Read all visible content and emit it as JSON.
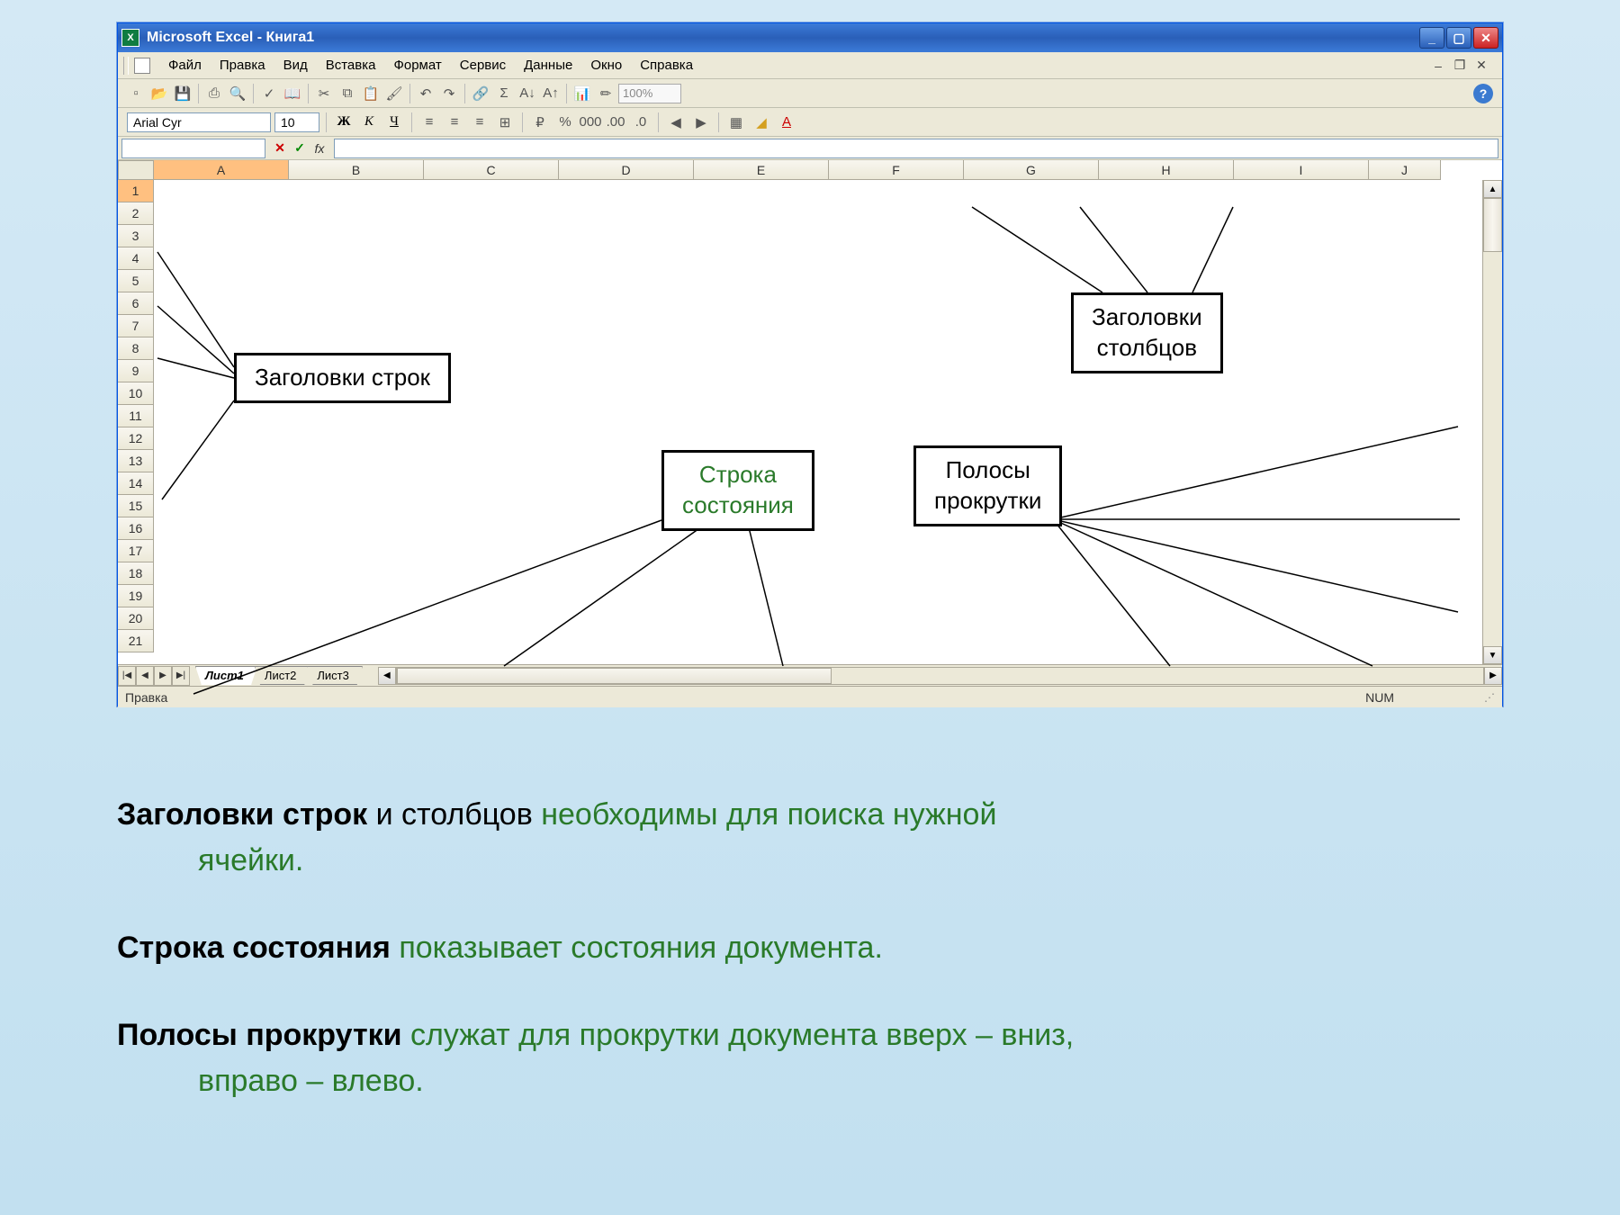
{
  "window": {
    "title": "Microsoft Excel - Книга1",
    "background_gradient": [
      "#d4e9f5",
      "#c2e0f0"
    ],
    "frame_color": "#0054e3"
  },
  "menu": {
    "items": [
      "Файл",
      "Правка",
      "Вид",
      "Вставка",
      "Формат",
      "Сервис",
      "Данные",
      "Окно",
      "Справка"
    ]
  },
  "toolbar": {
    "zoom": "100%"
  },
  "format": {
    "font_name": "Arial Cyr",
    "font_size": "10",
    "bold": "Ж",
    "italic": "К",
    "underline": "Ч"
  },
  "formula_bar": {
    "fx_label": "fx"
  },
  "columns": {
    "labels": [
      "A",
      "B",
      "C",
      "D",
      "E",
      "F",
      "G",
      "H",
      "I",
      "J"
    ],
    "widths": [
      150,
      150,
      150,
      150,
      150,
      150,
      150,
      150,
      150,
      80
    ],
    "active_index": 0
  },
  "rows": {
    "count": 21,
    "height": 25,
    "active_index": 0
  },
  "sheets": {
    "tabs": [
      "Лист1",
      "Лист2",
      "Лист3"
    ],
    "active_index": 0
  },
  "statusbar": {
    "mode": "Правка",
    "indicator": "NUM"
  },
  "callouts": {
    "row_headers": "Заголовки строк",
    "col_headers": "Заголовки\nстолбцов",
    "status_row": "Строка\nсостояния",
    "scrollbars": "Полосы\nпрокрутки"
  },
  "explanation": {
    "p1_b": "Заголовки строк",
    "p1_mid": " и столбцов ",
    "p1_rest": "необходимы для поиска нужной",
    "p1_line2": "ячейки.",
    "p2_b": "Строка состояния",
    "p2_rest": " показывает состояния документа.",
    "p3_b": "Полосы прокрутки",
    "p3_rest": " служат для прокрутки документа вверх – вниз,",
    "p3_line2": "вправо – влево."
  },
  "colors": {
    "ui_bg": "#ece9d8",
    "border": "#aca899",
    "active_header": "#ffc080",
    "titlebar": "#3c7bd8",
    "explain_green": "#2a7a2a"
  }
}
